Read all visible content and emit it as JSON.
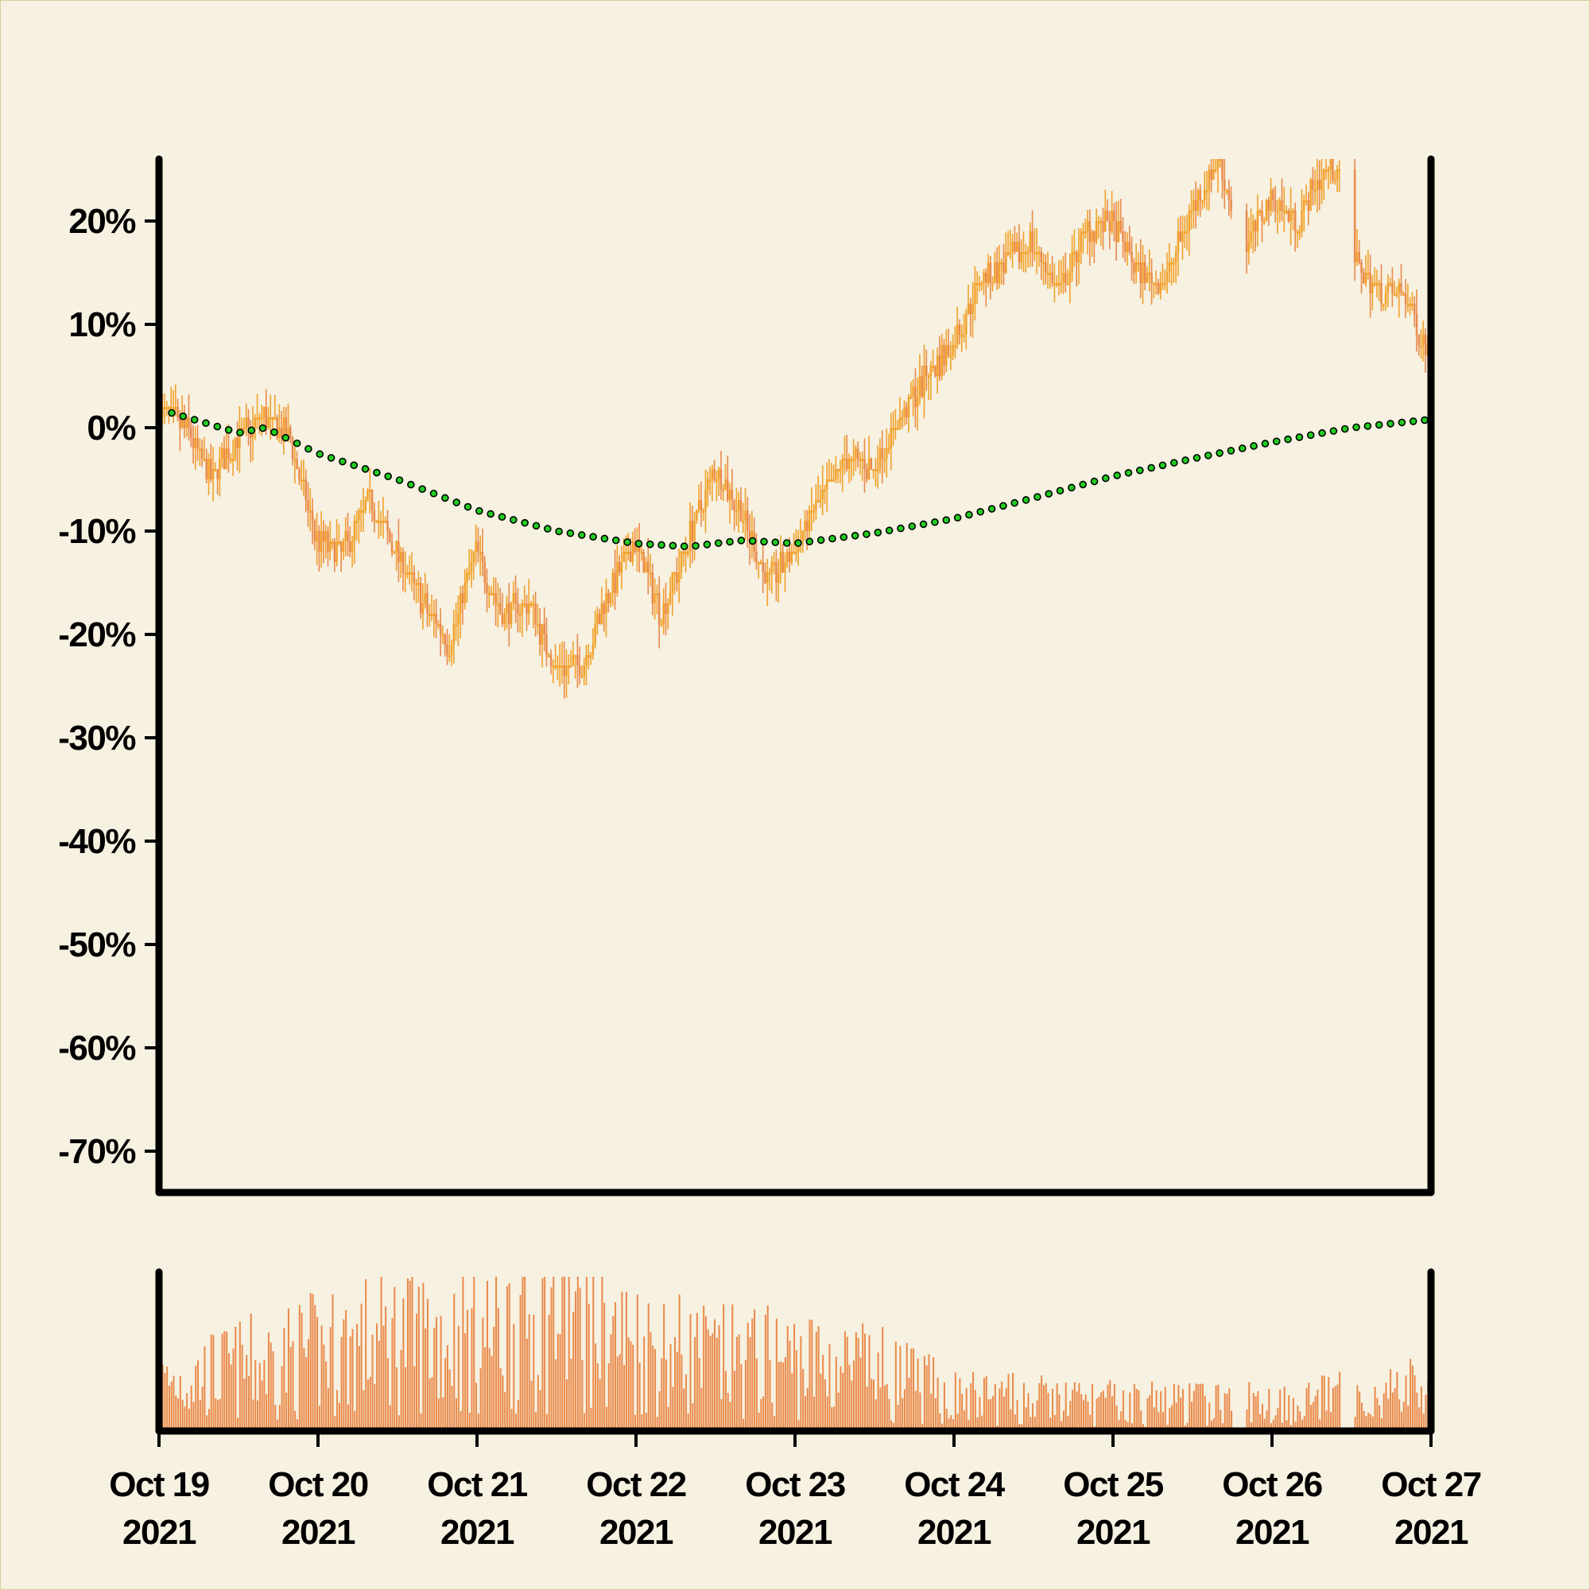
{
  "chart_data": {
    "type": "candlestick",
    "title": "",
    "xlabel": "",
    "ylabel": "",
    "x_ticks": [
      {
        "date": "2021-10-19",
        "line1": "Oct 19",
        "line2": "2021"
      },
      {
        "date": "2021-10-20",
        "line1": "Oct 20",
        "line2": "2021"
      },
      {
        "date": "2021-10-21",
        "line1": "Oct 21",
        "line2": "2021"
      },
      {
        "date": "2021-10-22",
        "line1": "Oct 22",
        "line2": "2021"
      },
      {
        "date": "2021-10-23",
        "line1": "Oct 23",
        "line2": "2021"
      },
      {
        "date": "2021-10-24",
        "line1": "Oct 24",
        "line2": "2021"
      },
      {
        "date": "2021-10-25",
        "line1": "Oct 25",
        "line2": "2021"
      },
      {
        "date": "2021-10-26",
        "line1": "Oct 26",
        "line2": "2021"
      },
      {
        "date": "2021-10-27",
        "line1": "Oct 27",
        "line2": "2021"
      }
    ],
    "y_ticks": [
      {
        "value": 20,
        "label": "20%"
      },
      {
        "value": 10,
        "label": "10%"
      },
      {
        "value": 0,
        "label": "0%"
      },
      {
        "value": -10,
        "label": "-10%"
      },
      {
        "value": -20,
        "label": "-20%"
      },
      {
        "value": -30,
        "label": "-30%"
      },
      {
        "value": -40,
        "label": "-40%"
      },
      {
        "value": -50,
        "label": "-50%"
      },
      {
        "value": -60,
        "label": "-60%"
      },
      {
        "value": -70,
        "label": "-70%"
      }
    ],
    "ylim": [
      -74,
      26
    ],
    "xlim": [
      "2021-10-19",
      "2021-10-27"
    ],
    "price_path": [
      [
        "2021-10-19T00:00",
        2
      ],
      [
        "2021-10-19T04:00",
        0
      ],
      [
        "2021-10-19T08:00",
        -5
      ],
      [
        "2021-10-19T12:00",
        -1
      ],
      [
        "2021-10-19T16:00",
        1
      ],
      [
        "2021-10-19T20:00",
        -1
      ],
      [
        "2021-10-20T00:00",
        -11
      ],
      [
        "2021-10-20T04:00",
        -12
      ],
      [
        "2021-10-20T08:00",
        -7
      ],
      [
        "2021-10-20T12:00",
        -12
      ],
      [
        "2021-10-20T16:00",
        -17
      ],
      [
        "2021-10-20T20:00",
        -21
      ],
      [
        "2021-10-21T00:00",
        -12
      ],
      [
        "2021-10-21T04:00",
        -18
      ],
      [
        "2021-10-21T08:00",
        -17
      ],
      [
        "2021-10-21T12:00",
        -23
      ],
      [
        "2021-10-21T16:00",
        -23
      ],
      [
        "2021-10-21T20:00",
        -16
      ],
      [
        "2021-10-22T00:00",
        -11
      ],
      [
        "2021-10-22T04:00",
        -18
      ],
      [
        "2021-10-22T08:00",
        -11
      ],
      [
        "2021-10-22T12:00",
        -4
      ],
      [
        "2021-10-22T16:00",
        -8
      ],
      [
        "2021-10-22T20:00",
        -15
      ],
      [
        "2021-10-23T00:00",
        -12
      ],
      [
        "2021-10-23T04:00",
        -7
      ],
      [
        "2021-10-23T08:00",
        -3
      ],
      [
        "2021-10-23T12:00",
        -4
      ],
      [
        "2021-10-23T16:00",
        1
      ],
      [
        "2021-10-23T20:00",
        5
      ],
      [
        "2021-10-24T00:00",
        8
      ],
      [
        "2021-10-24T04:00",
        14
      ],
      [
        "2021-10-24T08:00",
        16
      ],
      [
        "2021-10-24T12:00",
        18
      ],
      [
        "2021-10-24T16:00",
        13
      ],
      [
        "2021-10-24T20:00",
        19
      ],
      [
        "2021-10-25T00:00",
        20
      ],
      [
        "2021-10-25T04:00",
        15
      ],
      [
        "2021-10-25T08:00",
        14
      ],
      [
        "2021-10-25T12:00",
        21
      ],
      [
        "2021-10-25T16:00",
        26
      ],
      [
        "2021-10-25T20:00",
        17
      ],
      [
        "2021-10-26T00:00",
        22
      ],
      [
        "2021-10-26T04:00",
        20
      ],
      [
        "2021-10-26T08:00",
        25
      ],
      [
        "2021-10-26T10:00",
        25
      ],
      [
        "2021-10-26T12:00",
        17
      ],
      [
        "2021-10-26T16:00",
        13
      ],
      [
        "2021-10-26T20:00",
        13
      ],
      [
        "2021-10-27T00:00",
        7
      ]
    ],
    "moving_average": [
      [
        "2021-10-19T00:00",
        1.8
      ],
      [
        "2021-10-19T12:00",
        -0.5
      ],
      [
        "2021-10-19T16:00",
        0
      ],
      [
        "2021-10-20T00:00",
        -2.5
      ],
      [
        "2021-10-20T12:00",
        -5
      ],
      [
        "2021-10-21T00:00",
        -8
      ],
      [
        "2021-10-21T12:00",
        -10
      ],
      [
        "2021-10-22T00:00",
        -11.2
      ],
      [
        "2021-10-22T08:00",
        -11.5
      ],
      [
        "2021-10-22T16:00",
        -10.9
      ],
      [
        "2021-10-23T00:00",
        -11.2
      ],
      [
        "2021-10-23T12:00",
        -10.2
      ],
      [
        "2021-10-24T00:00",
        -8.8
      ],
      [
        "2021-10-24T12:00",
        -6.8
      ],
      [
        "2021-10-25T00:00",
        -4.7
      ],
      [
        "2021-10-25T12:00",
        -3
      ],
      [
        "2021-10-26T00:00",
        -1.4
      ],
      [
        "2021-10-26T12:00",
        0
      ],
      [
        "2021-10-27T00:00",
        0.8
      ]
    ],
    "volume_profile": [
      [
        "2021-10-19T00:00",
        0.3
      ],
      [
        "2021-10-19T12:00",
        0.4
      ],
      [
        "2021-10-20T00:00",
        0.5
      ],
      [
        "2021-10-20T12:00",
        0.6
      ],
      [
        "2021-10-21T00:00",
        0.6
      ],
      [
        "2021-10-21T12:00",
        0.75
      ],
      [
        "2021-10-22T00:00",
        0.55
      ],
      [
        "2021-10-22T12:00",
        0.45
      ],
      [
        "2021-10-23T00:00",
        0.45
      ],
      [
        "2021-10-23T12:00",
        0.38
      ],
      [
        "2021-10-24T00:00",
        0.22
      ],
      [
        "2021-10-24T12:00",
        0.2
      ],
      [
        "2021-10-25T00:00",
        0.18
      ],
      [
        "2021-10-25T12:00",
        0.18
      ],
      [
        "2021-10-26T00:00",
        0.18
      ],
      [
        "2021-10-26T12:00",
        0.22
      ],
      [
        "2021-10-27T00:00",
        0.28
      ]
    ],
    "gaps": [
      [
        "2021-10-25T18:00",
        "2021-10-25T19:40"
      ],
      [
        "2021-10-26T10:20",
        "2021-10-26T12:00"
      ]
    ],
    "colors": {
      "background": "#f6f1e1",
      "candle_up": "#f2a12a",
      "candle_down": "#ea8a4a",
      "volume": "#ea8a4a",
      "moving_average_fill": "#22cc22",
      "moving_average_edge": "#000000",
      "axis": "#000000"
    }
  }
}
